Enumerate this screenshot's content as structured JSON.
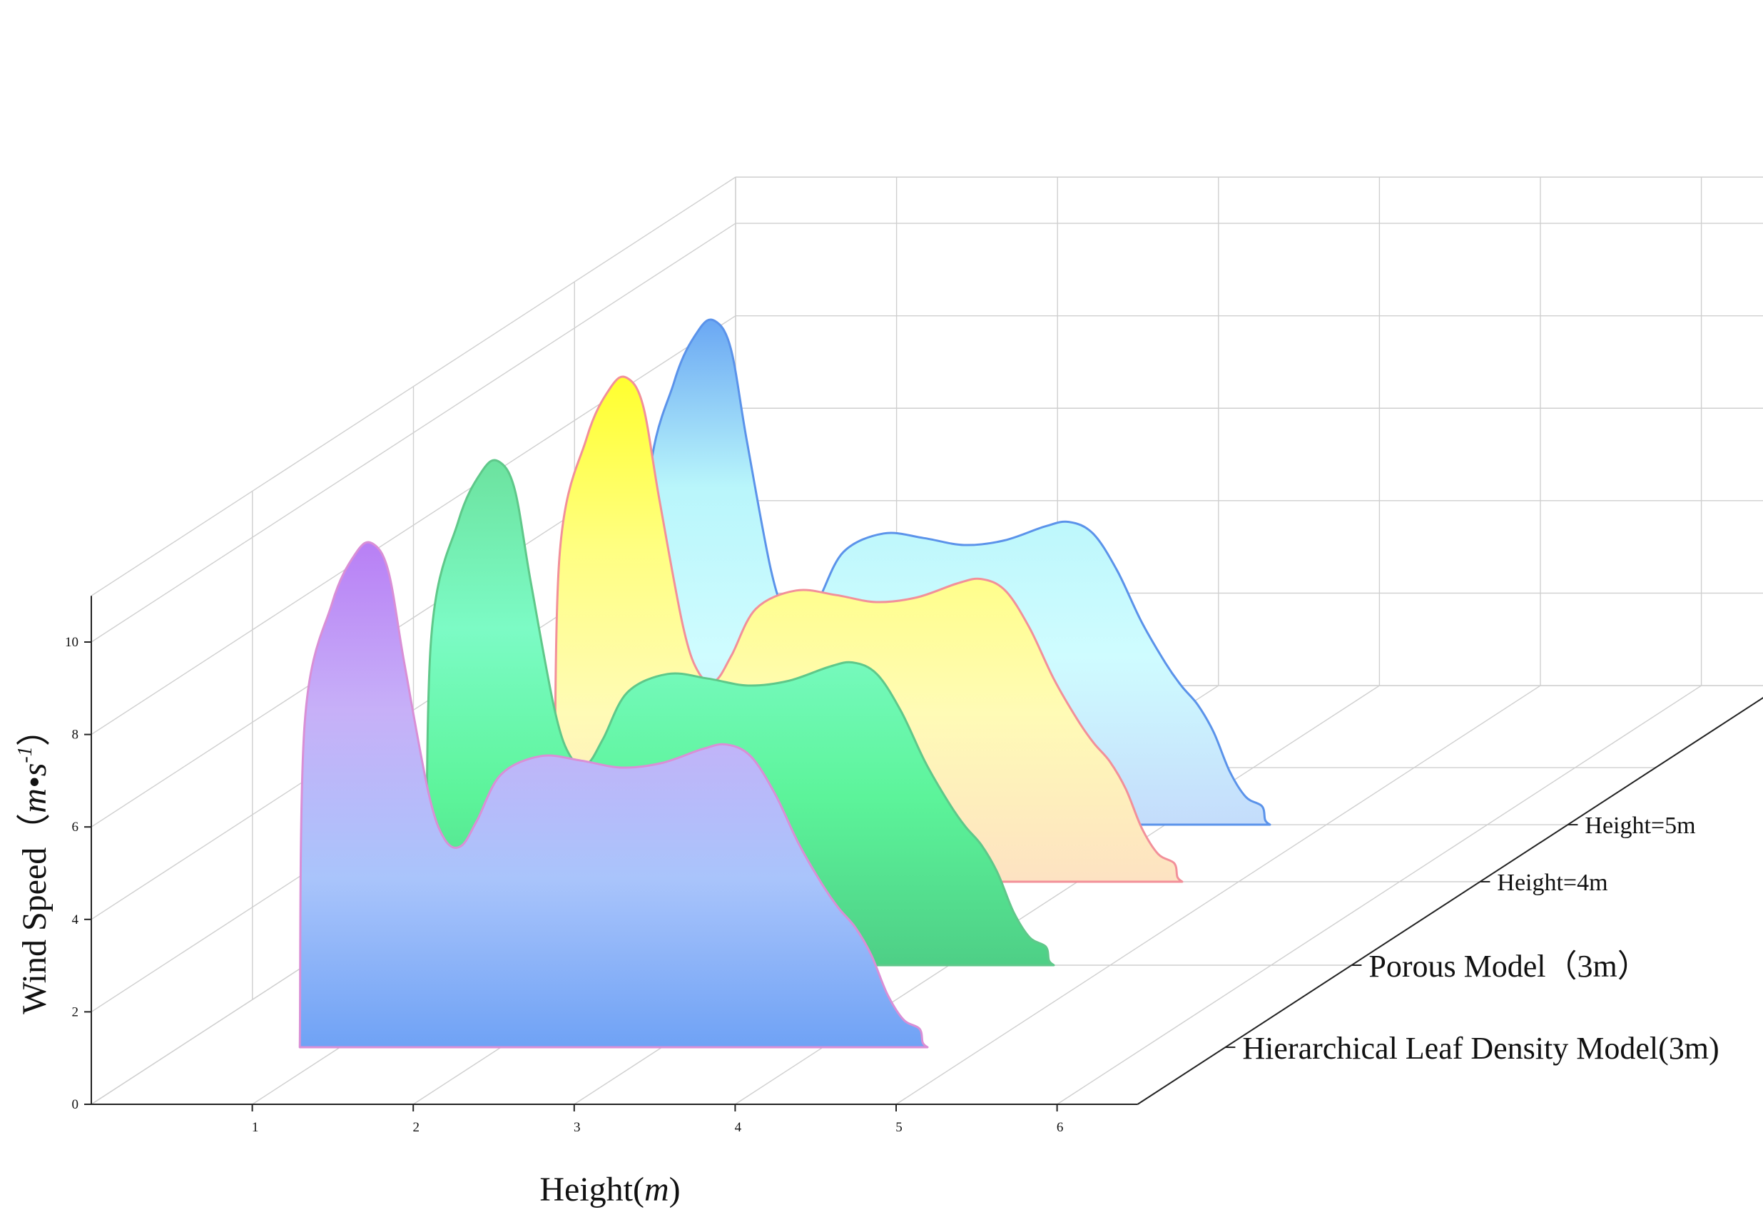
{
  "chart_data": {
    "type": "area",
    "subtype": "3d-waterfall",
    "xlabel_text": "Height(",
    "xlabel_unit": "m",
    "xlabel_close": ")",
    "ylabel_text": "Wind Speed（",
    "ylabel_unit": "m•s",
    "ylabel_exp": "-1",
    "ylabel_close": "）",
    "x_ticks": [
      1,
      2,
      3,
      4,
      5,
      6
    ],
    "y_ticks": [
      0,
      2,
      4,
      6,
      8,
      10
    ],
    "xlim": [
      0.2,
      6.5
    ],
    "ylim": [
      0,
      11
    ],
    "grid": true,
    "x": [
      0.75,
      0.78,
      0.95,
      1.1,
      1.2,
      1.3,
      1.4,
      1.55,
      1.65,
      1.75,
      1.85,
      2.0,
      2.25,
      2.5,
      2.75,
      3.0,
      3.25,
      3.4,
      3.55,
      3.7,
      3.85,
      4.0,
      4.1,
      4.2,
      4.3,
      4.4,
      4.5,
      4.6,
      4.62,
      4.65
    ],
    "series": [
      {
        "name": "Hierarchical Leaf Density Model(3m)",
        "values": [
          0,
          7.0,
          9.6,
          10.7,
          10.9,
          10.3,
          8.3,
          5.5,
          4.5,
          4.35,
          4.9,
          5.9,
          6.3,
          6.2,
          6.05,
          6.15,
          6.45,
          6.55,
          6.3,
          5.5,
          4.4,
          3.5,
          3.0,
          2.6,
          2.0,
          1.15,
          0.6,
          0.4,
          0.1,
          0
        ],
        "stroke": "#d98fd6",
        "gradient": [
          "#b87ff5",
          "#c7b0f8",
          "#a9c4fb",
          "#6fa2f5"
        ]
      },
      {
        "name": "Porous Model（3m）",
        "values": [
          0,
          7.0,
          9.6,
          10.7,
          10.9,
          10.3,
          8.3,
          5.5,
          4.5,
          4.35,
          4.9,
          5.9,
          6.3,
          6.2,
          6.05,
          6.15,
          6.45,
          6.55,
          6.3,
          5.5,
          4.4,
          3.5,
          3.0,
          2.6,
          2.0,
          1.15,
          0.6,
          0.4,
          0.1,
          0
        ],
        "stroke": "#5fc88a",
        "gradient": [
          "#6ce29f",
          "#7cfbc5",
          "#5cf49a",
          "#4ecf86"
        ]
      },
      {
        "name": "Height=4m",
        "values": [
          0,
          7.0,
          9.6,
          10.7,
          10.9,
          10.3,
          8.3,
          5.5,
          4.5,
          4.35,
          4.9,
          5.9,
          6.3,
          6.2,
          6.05,
          6.15,
          6.45,
          6.55,
          6.3,
          5.5,
          4.4,
          3.5,
          3.0,
          2.6,
          2.0,
          1.15,
          0.6,
          0.4,
          0.1,
          0
        ],
        "stroke": "#f2909a",
        "gradient": [
          "#ffff2e",
          "#ffff80",
          "#fffbb6",
          "#fde2c2"
        ]
      },
      {
        "name": "Height=5m",
        "values": [
          0,
          7.0,
          9.6,
          10.7,
          10.9,
          10.3,
          8.3,
          5.5,
          4.5,
          4.35,
          4.9,
          5.9,
          6.3,
          6.2,
          6.05,
          6.15,
          6.45,
          6.55,
          6.3,
          5.5,
          4.4,
          3.5,
          3.0,
          2.6,
          2.0,
          1.15,
          0.6,
          0.4,
          0.1,
          0
        ],
        "stroke": "#5b93ea",
        "gradient": [
          "#6aa7f3",
          "#b9f6fb",
          "#cffcff",
          "#c4dcfb"
        ]
      }
    ],
    "series_label_order": [
      "Height=5m",
      "Height=4m",
      "Porous Model（3m）",
      "Hierarchical Leaf Density Model(3m)"
    ]
  }
}
